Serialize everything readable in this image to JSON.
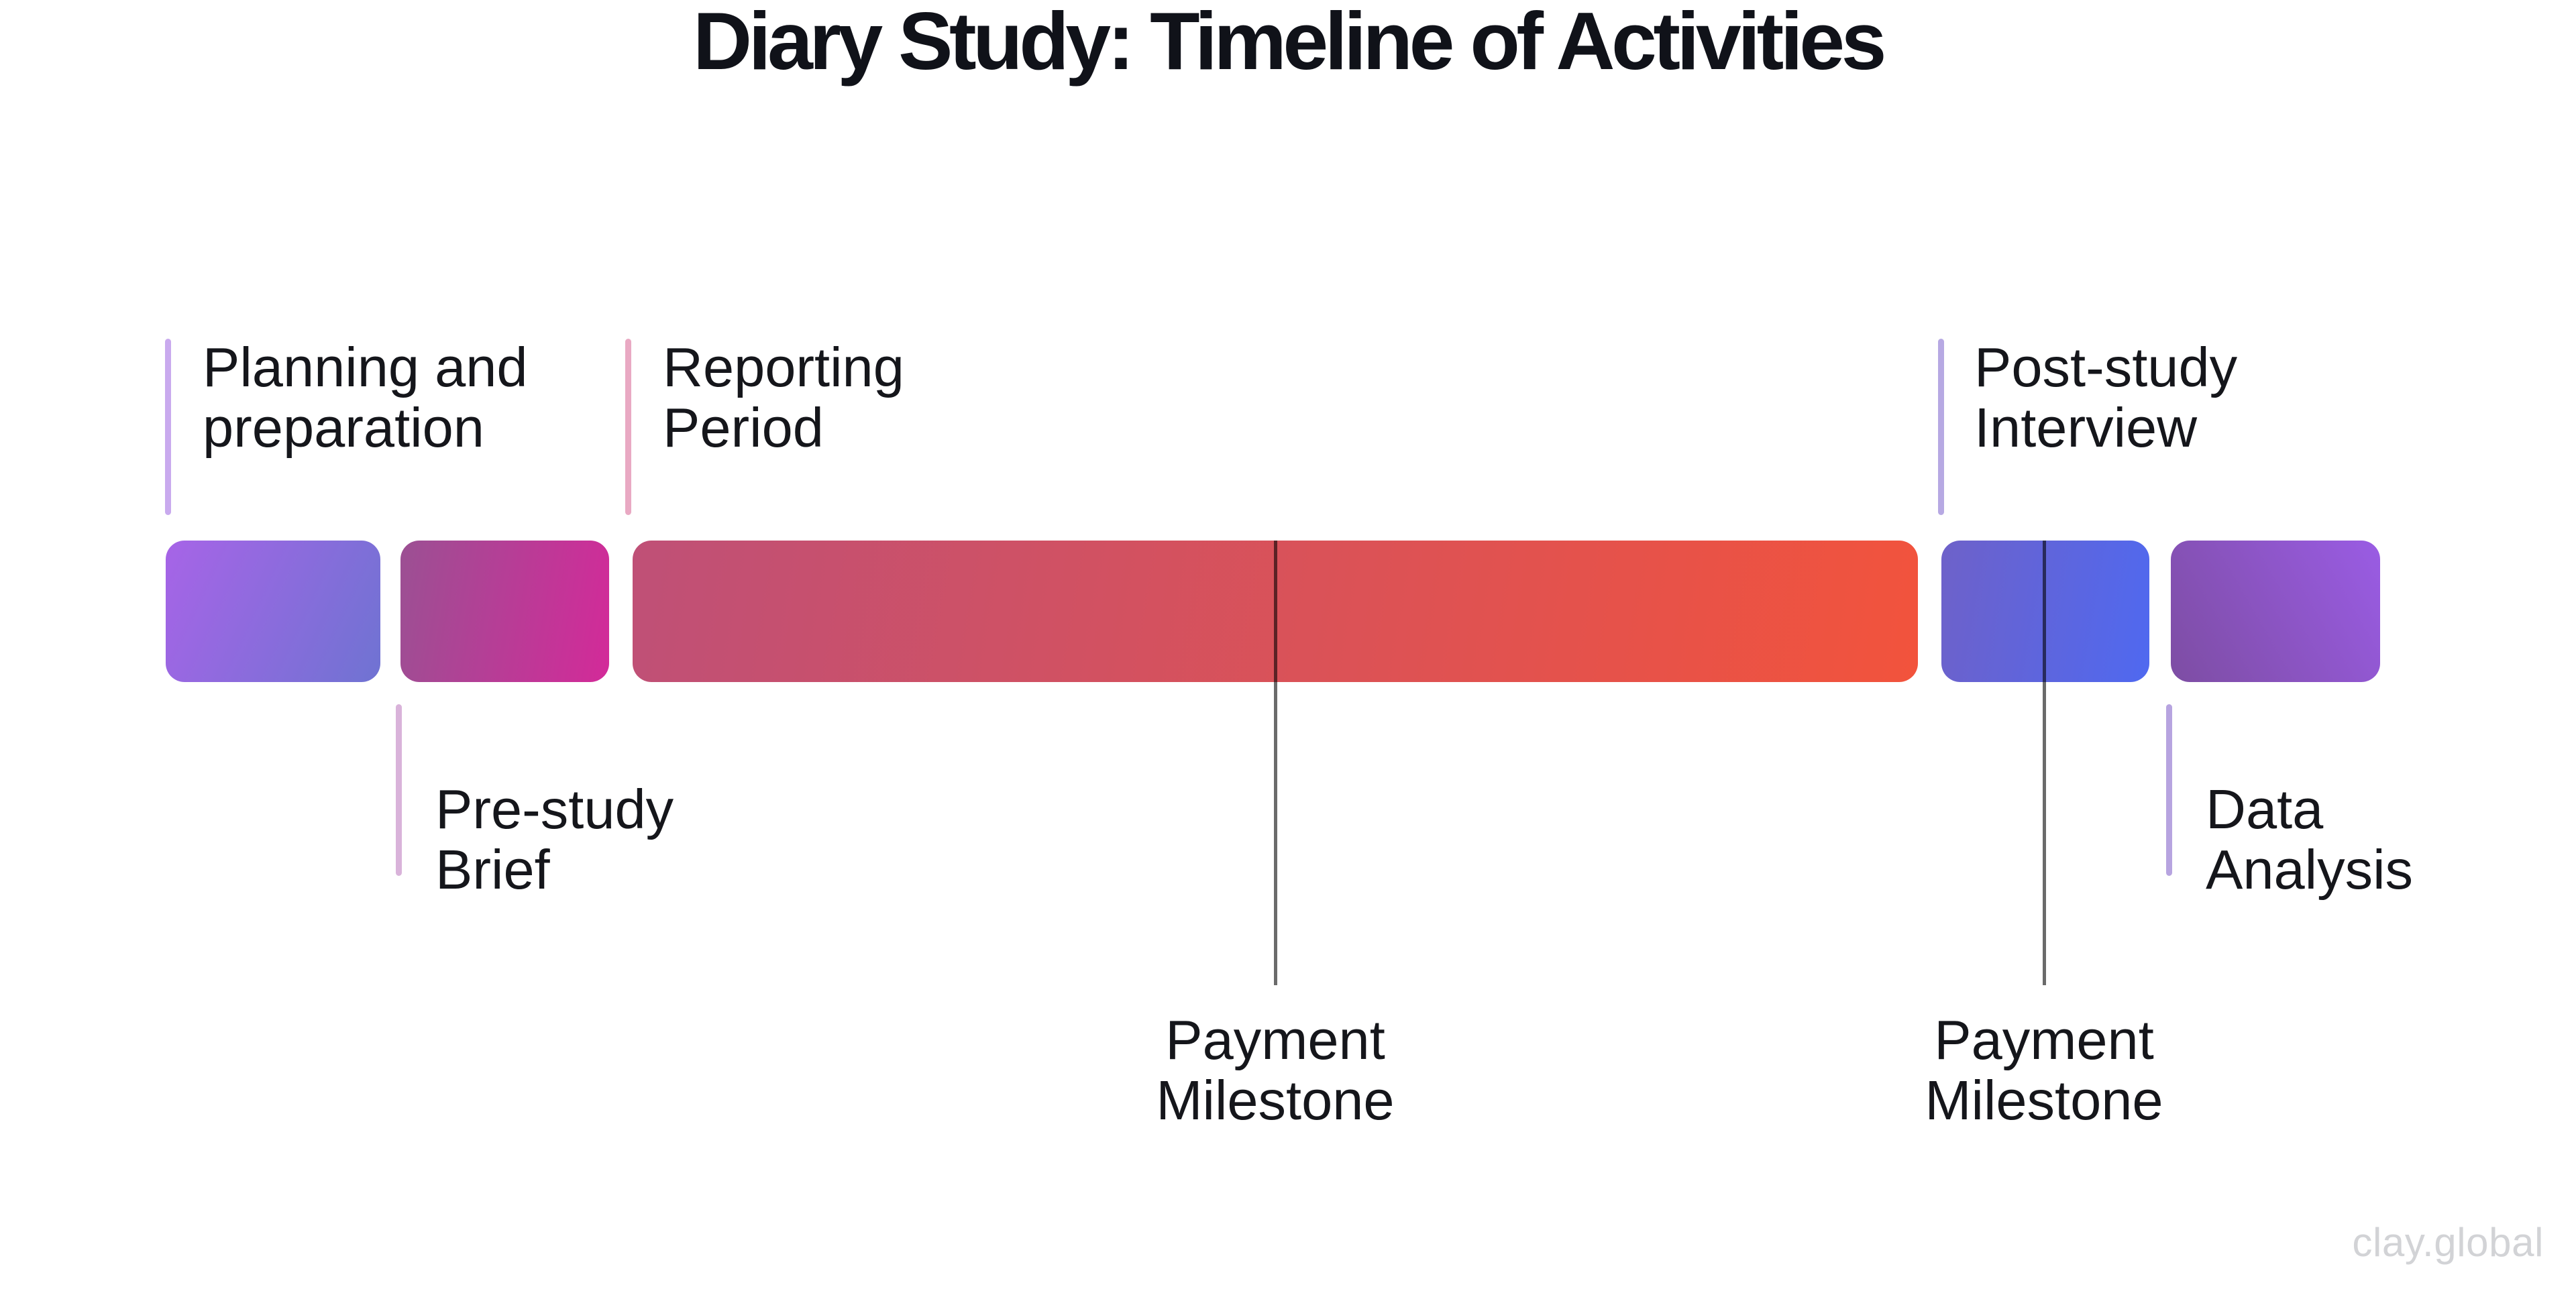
{
  "title": "Diary Study: Timeline of Activities",
  "watermark": "clay.global",
  "colors": {
    "background": "#ffffff",
    "title_text": "#101219",
    "label_text": "#15161b",
    "milestone_line": "rgba(0,0,0,0.58)",
    "watermark_text": "#d2d3d6"
  },
  "timeline": {
    "segments": [
      {
        "name": "planning-and-preparation",
        "gradient_from": "#a764e7",
        "gradient_to": "#6f73d2"
      },
      {
        "name": "pre-study-brief",
        "gradient_from": "#9b5093",
        "gradient_to": "#d32a99"
      },
      {
        "name": "reporting-period",
        "gradient_from": "#bf5077",
        "gradient_to": "#f2533c"
      },
      {
        "name": "post-study-interview",
        "gradient_from": "#6e61c9",
        "gradient_to": "#4f69f0"
      },
      {
        "name": "data-analysis",
        "gradient_from": "#7d4da3",
        "gradient_to": "#9a5ce4"
      }
    ],
    "labels_above": [
      {
        "text": "Planning and\npreparation",
        "tick_color": "#c9aaee"
      },
      {
        "text": "Reporting\nPeriod",
        "tick_color": "#e9a9c3"
      },
      {
        "text": "Post-study\nInterview",
        "tick_color": "#b7a9e3"
      }
    ],
    "labels_below": [
      {
        "text": "Pre-study\nBrief",
        "tick_color": "#d9b3da"
      },
      {
        "text": "Data\nAnalysis",
        "tick_color": "#b7a4e0"
      }
    ],
    "milestones": [
      {
        "text": "Payment\nMilestone"
      },
      {
        "text": "Payment\nMilestone"
      }
    ]
  }
}
